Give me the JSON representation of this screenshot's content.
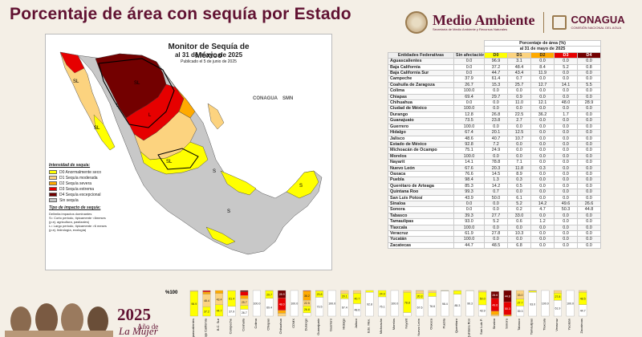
{
  "page": {
    "title": "Porcentaje de área con sequía por Estado"
  },
  "logos": {
    "medio_ambiente": "Medio Ambiente",
    "medio_ambiente_sub": "Secretaría de Medio Ambiente y Recursos Naturales",
    "conagua": "CONAGUA",
    "conagua_sub": "COMISIÓN NACIONAL DEL AGUA"
  },
  "map": {
    "title": "Monitor de Sequía de México",
    "subtitle": "al 31 de mayo de 2025",
    "published": "Publicado el 5 de junio de 2025",
    "logo_conagua": "CONAGUA",
    "logo_smn": "SMN",
    "legend_title": "Intensidad de sequía:",
    "legend": [
      {
        "label": "D0 Anormalmente seco",
        "color": "#ffff00"
      },
      {
        "label": "D1 Sequía moderada",
        "color": "#fcd37f"
      },
      {
        "label": "D2 Sequía severa",
        "color": "#ffaa00"
      },
      {
        "label": "D3 Sequía extrema",
        "color": "#e60000"
      },
      {
        "label": "D4 Sequía excepcional",
        "color": "#730000"
      },
      {
        "label": "Sin sequía",
        "color": "#c8c8c8"
      }
    ],
    "impact_title": "Tipo de impacto de sequía:",
    "impact_lines": [
      "Delimita impactos dominantes",
      "S= Corto periodo, típicamente <6meses",
      "(p.ej. agricultura, pastizales)",
      "L= Largo periodo, típicamente >6 meses",
      "(p.ej. hidrología, ecología)"
    ],
    "labels": [
      "SL",
      "SL",
      "SL",
      "SL",
      "S",
      "S",
      "S",
      "L",
      "L"
    ]
  },
  "table": {
    "header_top": "Porcentaje de área (%)",
    "header_date": "al 31 de mayo de 2025",
    "col_entity": "Entidades Federativas",
    "col_none": "Sin afectación",
    "cats": [
      "D0",
      "D1",
      "D2",
      "D3",
      "D4"
    ],
    "cat_colors": [
      "#ffff00",
      "#fcd37f",
      "#ffaa00",
      "#e60000",
      "#730000"
    ],
    "rows": [
      {
        "name": "Aguascalientes",
        "v": [
          "0.0",
          "96.9",
          "3.1",
          "0.0",
          "0.0",
          "0.0"
        ]
      },
      {
        "name": "Baja California",
        "v": [
          "0.0",
          "37.2",
          "48.4",
          "8.4",
          "5.2",
          "0.8"
        ]
      },
      {
        "name": "Baja California Sur",
        "v": [
          "0.0",
          "44.7",
          "43.4",
          "11.9",
          "0.0",
          "0.0"
        ]
      },
      {
        "name": "Campeche",
        "v": [
          "37.9",
          "61.4",
          "0.7",
          "0.0",
          "0.0",
          "0.0"
        ]
      },
      {
        "name": "Coahuila de Zaragoza",
        "v": [
          "26.7",
          "15.3",
          "25.7",
          "12.7",
          "14.1",
          "5.5"
        ]
      },
      {
        "name": "Colima",
        "v": [
          "100.0",
          "0.0",
          "0.0",
          "0.0",
          "0.0",
          "0.0"
        ]
      },
      {
        "name": "Chiapas",
        "v": [
          "69.4",
          "29.7",
          "0.9",
          "0.0",
          "0.0",
          "0.0"
        ]
      },
      {
        "name": "Chihuahua",
        "v": [
          "0.0",
          "0.0",
          "11.0",
          "12.1",
          "48.0",
          "28.9"
        ]
      },
      {
        "name": "Ciudad de México",
        "v": [
          "100.0",
          "0.0",
          "0.0",
          "0.0",
          "0.0",
          "0.0"
        ]
      },
      {
        "name": "Durango",
        "v": [
          "12.8",
          "26.8",
          "22.5",
          "36.2",
          "1.7",
          "0.0"
        ]
      },
      {
        "name": "Guanajuato",
        "v": [
          "73.5",
          "23.8",
          "2.7",
          "0.0",
          "0.0",
          "0.0"
        ]
      },
      {
        "name": "Guerrero",
        "v": [
          "100.0",
          "0.0",
          "0.0",
          "0.0",
          "0.0",
          "0.0"
        ]
      },
      {
        "name": "Hidalgo",
        "v": [
          "67.4",
          "20.1",
          "12.5",
          "0.0",
          "0.0",
          "0.0"
        ]
      },
      {
        "name": "Jalisco",
        "v": [
          "48.6",
          "40.7",
          "10.7",
          "0.0",
          "0.0",
          "0.0"
        ]
      },
      {
        "name": "Estado de México",
        "v": [
          "92.8",
          "7.2",
          "0.0",
          "0.0",
          "0.0",
          "0.0"
        ]
      },
      {
        "name": "Michoacán de Ocampo",
        "v": [
          "75.1",
          "24.9",
          "0.0",
          "0.0",
          "0.0",
          "0.0"
        ]
      },
      {
        "name": "Morelos",
        "v": [
          "100.0",
          "0.0",
          "0.0",
          "0.0",
          "0.0",
          "0.0"
        ]
      },
      {
        "name": "Nayarit",
        "v": [
          "14.1",
          "78.8",
          "7.1",
          "0.0",
          "0.0",
          "0.0"
        ]
      },
      {
        "name": "Nuevo León",
        "v": [
          "67.6",
          "20.3",
          "11.8",
          "0.3",
          "0.0",
          "0.0"
        ]
      },
      {
        "name": "Oaxaca",
        "v": [
          "76.6",
          "14.5",
          "8.9",
          "0.0",
          "0.0",
          "0.0"
        ]
      },
      {
        "name": "Puebla",
        "v": [
          "98.4",
          "1.3",
          "0.3",
          "0.0",
          "0.0",
          "0.0"
        ]
      },
      {
        "name": "Querétaro de Arteaga",
        "v": [
          "85.3",
          "14.2",
          "0.5",
          "0.0",
          "0.0",
          "0.0"
        ]
      },
      {
        "name": "Quintana Roo",
        "v": [
          "99.3",
          "0.7",
          "0.0",
          "0.0",
          "0.0",
          "0.0"
        ]
      },
      {
        "name": "San Luis Potosí",
        "v": [
          "43.9",
          "50.0",
          "6.1",
          "0.0",
          "0.0",
          "0.0"
        ]
      },
      {
        "name": "Sinaloa",
        "v": [
          "0.0",
          "0.0",
          "5.2",
          "14.2",
          "49.6",
          "26.6"
        ]
      },
      {
        "name": "Sonora",
        "v": [
          "0.0",
          "0.0",
          "0.2",
          "4.7",
          "50.3",
          "44.8"
        ]
      },
      {
        "name": "Tabasco",
        "v": [
          "39.3",
          "27.7",
          "33.0",
          "0.0",
          "0.0",
          "0.0"
        ]
      },
      {
        "name": "Tamaulipas",
        "v": [
          "93.0",
          "5.2",
          "0.6",
          "1.2",
          "0.0",
          "0.0"
        ]
      },
      {
        "name": "Tlaxcala",
        "v": [
          "100.0",
          "0.0",
          "0.0",
          "0.0",
          "0.0",
          "0.0"
        ]
      },
      {
        "name": "Veracruz",
        "v": [
          "61.9",
          "27.8",
          "10.3",
          "0.0",
          "0.0",
          "0.0"
        ]
      },
      {
        "name": "Yucatán",
        "v": [
          "100.0",
          "0.0",
          "0.0",
          "0.0",
          "0.0",
          "0.0"
        ]
      },
      {
        "name": "Zacatecas",
        "v": [
          "44.7",
          "48.5",
          "6.8",
          "0.0",
          "0.0",
          "0.0"
        ]
      }
    ]
  },
  "chart_data": {
    "type": "bar",
    "stacked": true,
    "ylabel": "%100",
    "ylim": [
      0,
      100
    ],
    "categories": [
      "Aguascalientes",
      "Baja California",
      "B.C. Sur",
      "Campeche",
      "Coahuila",
      "Colima",
      "Chiapas",
      "Chihuahua",
      "CDMX",
      "Durango",
      "Guanajuato",
      "Guerrero",
      "Hidalgo",
      "Jalisco",
      "Edo. Mex.",
      "Michoacán",
      "Morelos",
      "Nayarit",
      "Nuevo León",
      "Oaxaca",
      "Puebla",
      "Querétaro",
      "Quintana Roo",
      "San Luis P.",
      "Sinaloa",
      "Sonora",
      "Tabasco",
      "Tamaulipas",
      "Tlaxcala",
      "Veracruz",
      "Yucatán",
      "Zacatecas"
    ],
    "series": [
      {
        "name": "Sin afectación",
        "color": "#ffffff",
        "values": [
          0.0,
          0.0,
          0.0,
          37.9,
          26.7,
          100.0,
          69.4,
          0.0,
          100.0,
          12.8,
          73.5,
          100.0,
          67.4,
          48.6,
          92.8,
          75.1,
          100.0,
          14.1,
          67.6,
          76.6,
          98.4,
          85.3,
          99.3,
          43.9,
          0.0,
          0.0,
          39.3,
          93.0,
          100.0,
          61.9,
          100.0,
          44.7
        ]
      },
      {
        "name": "D0",
        "color": "#ffff00",
        "values": [
          96.9,
          37.2,
          44.7,
          61.4,
          15.3,
          0.0,
          29.7,
          0.0,
          0.0,
          26.8,
          23.8,
          0.0,
          20.1,
          40.7,
          7.2,
          24.9,
          0.0,
          78.8,
          20.3,
          14.5,
          1.3,
          14.2,
          0.7,
          50.0,
          0.0,
          0.0,
          27.7,
          5.2,
          0.0,
          27.8,
          0.0,
          48.5
        ]
      },
      {
        "name": "D1",
        "color": "#fcd37f",
        "values": [
          3.1,
          48.4,
          43.4,
          0.7,
          25.7,
          0.0,
          0.9,
          11.0,
          0.0,
          22.5,
          2.7,
          0.0,
          12.5,
          10.7,
          0.0,
          0.0,
          0.0,
          7.1,
          11.8,
          8.9,
          0.3,
          0.5,
          0.0,
          6.1,
          5.2,
          0.2,
          33.0,
          0.6,
          0.0,
          10.3,
          0.0,
          6.8
        ]
      },
      {
        "name": "D2",
        "color": "#ffaa00",
        "values": [
          0.0,
          8.4,
          11.9,
          0.0,
          12.7,
          0.0,
          0.0,
          12.1,
          0.0,
          36.2,
          0.0,
          0.0,
          0.0,
          0.0,
          0.0,
          0.0,
          0.0,
          0.0,
          0.3,
          0.0,
          0.0,
          0.0,
          0.0,
          0.0,
          14.2,
          4.7,
          0.0,
          1.2,
          0.0,
          0.0,
          0.0,
          0.0
        ]
      },
      {
        "name": "D3",
        "color": "#e60000",
        "values": [
          0.0,
          5.2,
          0.0,
          0.0,
          14.1,
          0.0,
          0.0,
          48.0,
          0.0,
          1.7,
          0.0,
          0.0,
          0.0,
          0.0,
          0.0,
          0.0,
          0.0,
          0.0,
          0.0,
          0.0,
          0.0,
          0.0,
          0.0,
          0.0,
          49.6,
          50.3,
          0.0,
          0.0,
          0.0,
          0.0,
          0.0,
          0.0
        ]
      },
      {
        "name": "D4",
        "color": "#730000",
        "values": [
          0.0,
          0.8,
          0.0,
          0.0,
          5.5,
          0.0,
          0.0,
          28.9,
          0.0,
          0.0,
          0.0,
          0.0,
          0.0,
          0.0,
          0.0,
          0.0,
          0.0,
          0.0,
          0.0,
          0.0,
          0.0,
          0.0,
          0.0,
          0.0,
          26.6,
          44.8,
          0.0,
          0.0,
          0.0,
          0.0,
          0.0,
          0.0
        ]
      }
    ]
  },
  "footer": {
    "year": "2025",
    "sub1": "Año de",
    "sub2": "La Mujer"
  }
}
